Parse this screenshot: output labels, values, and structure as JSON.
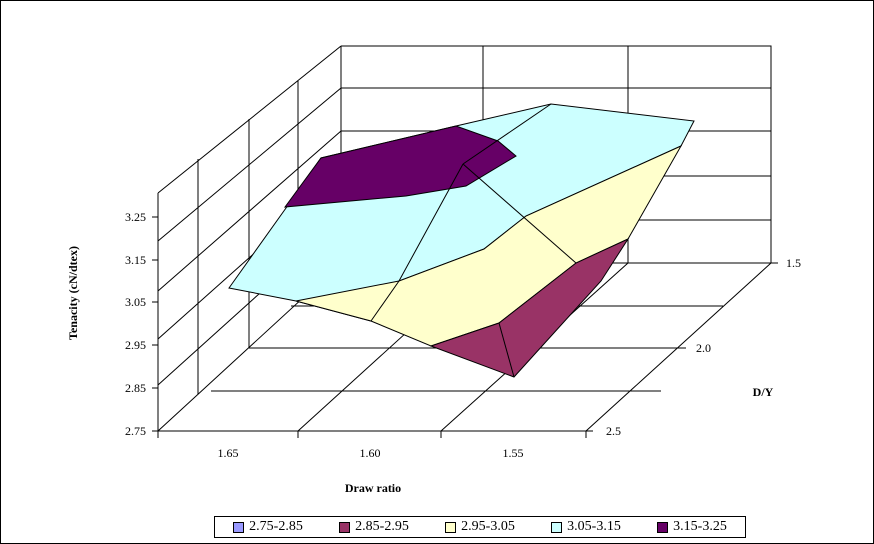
{
  "chart_data": {
    "type": "surface",
    "xlabel": "Draw ratio",
    "ylabel": "D/Y",
    "zlabel": "Tenacity (cN/dtex)",
    "x_ticks": [
      "1.65",
      "1.60",
      "1.55"
    ],
    "y_ticks": [
      "1.5",
      "2.0",
      "2.5"
    ],
    "z_ticks": [
      "2.75",
      "2.85",
      "2.95",
      "3.05",
      "3.15",
      "3.25"
    ],
    "zlim": [
      2.75,
      3.25
    ],
    "legend_position": "bottom",
    "legend": [
      {
        "label": "2.75-2.85",
        "color": "#9999FF"
      },
      {
        "label": "2.85-2.95",
        "color": "#993366"
      },
      {
        "label": "2.95-3.05",
        "color": "#FFFFCC"
      },
      {
        "label": "3.05-3.15",
        "color": "#CCFFFF"
      },
      {
        "label": "3.15-3.25",
        "color": "#660066"
      }
    ]
  }
}
